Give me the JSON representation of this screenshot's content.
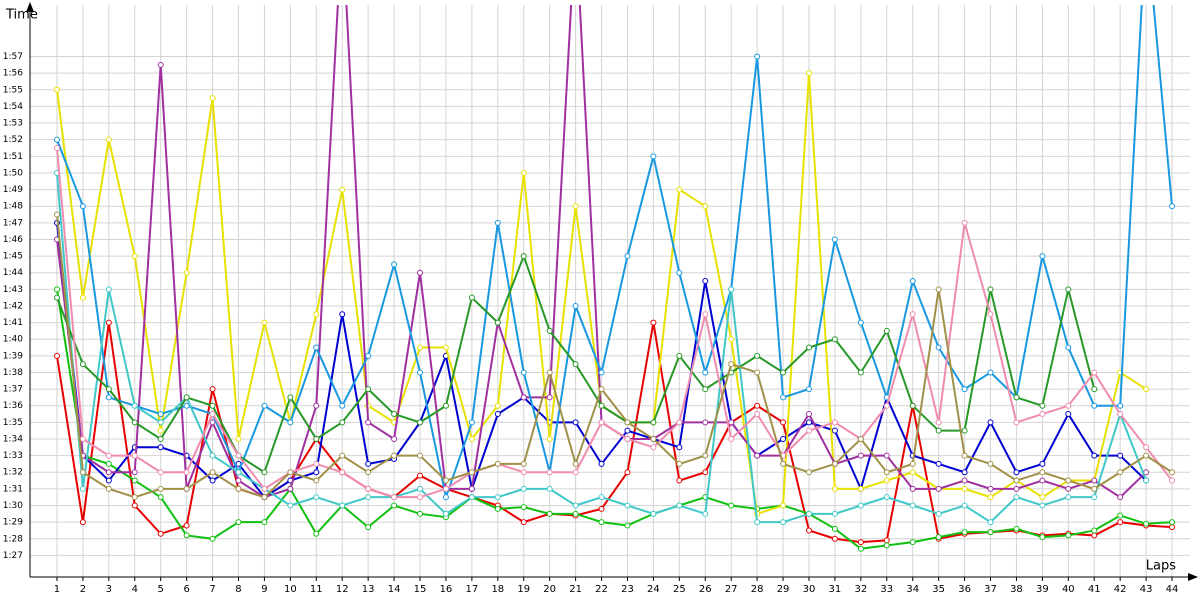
{
  "chart_data": {
    "type": "line",
    "y_axis_label": "Time",
    "x_axis_label": "Laps",
    "xlim": [
      -0.04,
      44.5
    ],
    "ylim": [
      85.7,
      120.1
    ],
    "xticks": [
      1,
      2,
      3,
      4,
      5,
      6,
      7,
      8,
      9,
      10,
      11,
      12,
      13,
      14,
      15,
      16,
      17,
      18,
      19,
      20,
      21,
      22,
      23,
      24,
      25,
      26,
      27,
      28,
      29,
      30,
      31,
      32,
      33,
      34,
      35,
      36,
      37,
      38,
      39,
      40,
      41,
      42,
      43,
      44
    ],
    "yticks": [
      {
        "value": 87,
        "label": "1:27"
      },
      {
        "value": 88,
        "label": "1:28"
      },
      {
        "value": 89,
        "label": "1:29"
      },
      {
        "value": 90,
        "label": "1:30"
      },
      {
        "value": 91,
        "label": "1:31"
      },
      {
        "value": 92,
        "label": "1:32"
      },
      {
        "value": 93,
        "label": "1:33"
      },
      {
        "value": 94,
        "label": "1:34"
      },
      {
        "value": 95,
        "label": "1:35"
      },
      {
        "value": 96,
        "label": "1:36"
      },
      {
        "value": 97,
        "label": "1:37"
      },
      {
        "value": 98,
        "label": "1:38"
      },
      {
        "value": 99,
        "label": "1:39"
      },
      {
        "value": 100,
        "label": "1:40"
      },
      {
        "value": 101,
        "label": "1:41"
      },
      {
        "value": 102,
        "label": "1:42"
      },
      {
        "value": 103,
        "label": "1:43"
      },
      {
        "value": 104,
        "label": "1:44"
      },
      {
        "value": 105,
        "label": "1:45"
      },
      {
        "value": 106,
        "label": "1:46"
      },
      {
        "value": 107,
        "label": "1:47"
      },
      {
        "value": 108,
        "label": "1:48"
      },
      {
        "value": 109,
        "label": "1:49"
      },
      {
        "value": 110,
        "label": "1:50"
      },
      {
        "value": 111,
        "label": "1:51"
      },
      {
        "value": 112,
        "label": "1:52"
      },
      {
        "value": 113,
        "label": "1:53"
      },
      {
        "value": 114,
        "label": "1:54"
      },
      {
        "value": 115,
        "label": "1:55"
      },
      {
        "value": 116,
        "label": "1:56"
      },
      {
        "value": 117,
        "label": "1:57"
      }
    ],
    "grid": true,
    "x": [
      1,
      2,
      3,
      4,
      5,
      6,
      7,
      8,
      9,
      10,
      11,
      12,
      13,
      14,
      15,
      16,
      17,
      18,
      19,
      20,
      21,
      22,
      23,
      24,
      25,
      26,
      27,
      28,
      29,
      30,
      31,
      32,
      33,
      34,
      35,
      36,
      37,
      38,
      39,
      40,
      41,
      42,
      43,
      44
    ],
    "series": [
      {
        "color": "#e80000",
        "values": [
          99,
          89,
          101,
          90,
          88.3,
          88.8,
          97,
          91,
          90.5,
          91.5,
          94,
          92,
          91,
          90.5,
          91.8,
          91,
          90.5,
          90,
          89,
          89.5,
          89.4,
          89.8,
          92,
          101,
          91.5,
          92,
          95,
          96,
          95,
          88.5,
          88,
          87.8,
          87.9,
          96,
          88,
          88.3,
          88.4,
          88.5,
          88.2,
          88.3,
          88.2,
          89,
          88.8,
          88.7
        ]
      },
      {
        "color": "#10c010",
        "values": [
          103,
          93,
          92.5,
          91.5,
          90.5,
          88.2,
          88,
          89,
          89,
          91,
          88.3,
          90,
          88.7,
          90,
          89.5,
          89.3,
          90.5,
          89.8,
          89.9,
          89.5,
          89.5,
          89,
          88.8,
          89.5,
          90,
          90.5,
          90,
          89.8,
          90,
          89.5,
          88.6,
          87.4,
          87.6,
          87.8,
          88.1,
          88.4,
          88.4,
          88.6,
          88.1,
          88.2,
          88.5,
          89.4,
          88.9,
          89
        ]
      },
      {
        "color": "#0000d0",
        "values": [
          107,
          93,
          91.5,
          93.5,
          93.5,
          93,
          91.5,
          92.5,
          90.5,
          91.5,
          92,
          101.5,
          92.5,
          92.8,
          95,
          99,
          91,
          95.5,
          96.5,
          95,
          95,
          92.5,
          94.5,
          94,
          93.5,
          103.5,
          95,
          93,
          94,
          95,
          94.5,
          91,
          96.5,
          93,
          92.5,
          92,
          95,
          92,
          92.5,
          95.5,
          93,
          93,
          91.5,
          null
        ]
      },
      {
        "color": "#e8e000",
        "values": [
          115,
          102.5,
          112,
          105,
          94.5,
          104,
          114.5,
          94,
          101,
          95,
          101.5,
          109,
          96,
          95,
          99.5,
          99.5,
          94,
          96,
          110,
          94,
          108,
          96,
          95,
          95,
          109,
          108,
          100,
          89.5,
          90,
          116,
          91,
          91,
          91.5,
          92,
          91,
          91,
          90.5,
          91.5,
          90.5,
          91.5,
          91.5,
          98,
          97,
          null
        ]
      },
      {
        "color": "#a030a0",
        "values": [
          106,
          93,
          92,
          92,
          116.5,
          91,
          95,
          91.5,
          90.5,
          91,
          96,
          125,
          95,
          94,
          104,
          91,
          91,
          101,
          96.5,
          96.5,
          125,
          95,
          94,
          94,
          95,
          95,
          95,
          93,
          93,
          95.5,
          92.5,
          93,
          93,
          91,
          91,
          91.5,
          91,
          91,
          91.5,
          91,
          91.5,
          90.5,
          92,
          null
        ]
      },
      {
        "color": "#1898e0",
        "values": [
          112,
          108,
          96.5,
          96,
          95.5,
          96,
          95.5,
          92,
          96,
          95,
          99.5,
          96,
          99,
          104.5,
          98,
          90.5,
          95,
          107,
          98,
          92,
          102,
          98,
          105,
          111,
          104,
          98,
          103,
          117,
          96.5,
          97,
          106,
          101,
          96.5,
          103.5,
          99.5,
          97,
          98,
          96.5,
          105,
          99.5,
          96,
          96,
          125,
          108
        ]
      },
      {
        "color": "#40c8c8",
        "values": [
          110,
          91,
          103,
          96,
          95,
          96.5,
          93,
          92,
          91,
          90,
          90.5,
          90,
          90.5,
          90.5,
          91,
          89.5,
          90.5,
          90.5,
          91,
          91,
          90,
          90.5,
          90,
          89.5,
          90,
          89.5,
          103,
          89,
          89,
          89.5,
          89.5,
          90,
          90.5,
          90,
          89.5,
          90,
          89,
          90.5,
          90,
          90.5,
          90.5,
          95.5,
          91.5,
          null
        ]
      },
      {
        "color": "#289828",
        "values": [
          102.5,
          98.5,
          97,
          95,
          94,
          96.5,
          96,
          93,
          92,
          96.5,
          94,
          95,
          97,
          95.5,
          95,
          96,
          102.5,
          101,
          105,
          100.5,
          98.5,
          96,
          95,
          95,
          99,
          97,
          98,
          99,
          98,
          99.5,
          100,
          98,
          100.5,
          96,
          94.5,
          94.5,
          103,
          96.5,
          96,
          103,
          97,
          null,
          null,
          null
        ]
      },
      {
        "color": "#f08cb0",
        "values": [
          111.5,
          94,
          93,
          93,
          92,
          92,
          95.5,
          93,
          91,
          92,
          92.5,
          92,
          91,
          90.5,
          90.5,
          91,
          92,
          92.5,
          92,
          92,
          92,
          95,
          94,
          93.5,
          95,
          101.5,
          94,
          95.5,
          93,
          94.5,
          95,
          94,
          96,
          101.5,
          95,
          107,
          101.5,
          95,
          95.5,
          96,
          98,
          95.5,
          93.5,
          91.5
        ]
      },
      {
        "color": "#a09048",
        "values": [
          107.5,
          92,
          91,
          90.5,
          91,
          91,
          92,
          91,
          90.5,
          92,
          91.5,
          93,
          92,
          93,
          93,
          91.5,
          92,
          92.5,
          92.5,
          98,
          92.5,
          97,
          95,
          94,
          92.5,
          93,
          98.5,
          98,
          92.5,
          92,
          92.5,
          94,
          92,
          92.5,
          103,
          93,
          92.5,
          91.5,
          92,
          91.5,
          91,
          92,
          93,
          92
        ]
      }
    ]
  }
}
